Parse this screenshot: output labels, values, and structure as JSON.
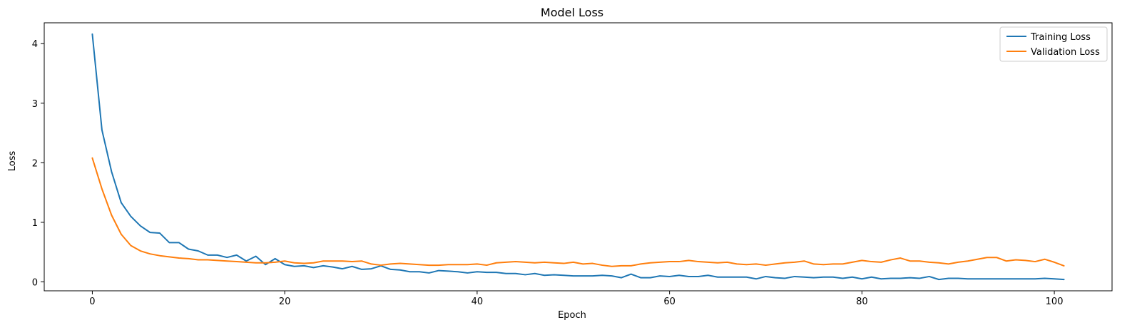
{
  "chart_data": {
    "type": "line",
    "title": "Model Loss",
    "xlabel": "Epoch",
    "ylabel": "Loss",
    "xlim": [
      -5,
      106
    ],
    "ylim": [
      -0.15,
      4.35
    ],
    "xticks": [
      0,
      20,
      40,
      60,
      80,
      100
    ],
    "yticks": [
      0,
      1,
      2,
      3,
      4
    ],
    "grid": false,
    "legend_position": "top-right",
    "series": [
      {
        "name": "Training Loss",
        "color": "#1f77b4",
        "values": [
          4.16,
          2.55,
          1.85,
          1.33,
          1.1,
          0.94,
          0.83,
          0.82,
          0.66,
          0.66,
          0.55,
          0.52,
          0.45,
          0.45,
          0.41,
          0.45,
          0.35,
          0.43,
          0.29,
          0.39,
          0.29,
          0.26,
          0.27,
          0.24,
          0.27,
          0.25,
          0.22,
          0.26,
          0.21,
          0.22,
          0.27,
          0.21,
          0.2,
          0.17,
          0.17,
          0.15,
          0.19,
          0.18,
          0.17,
          0.15,
          0.17,
          0.16,
          0.16,
          0.14,
          0.14,
          0.12,
          0.14,
          0.11,
          0.12,
          0.11,
          0.1,
          0.1,
          0.1,
          0.11,
          0.1,
          0.07,
          0.13,
          0.07,
          0.07,
          0.1,
          0.09,
          0.11,
          0.09,
          0.09,
          0.11,
          0.08,
          0.08,
          0.08,
          0.08,
          0.05,
          0.09,
          0.07,
          0.06,
          0.09,
          0.08,
          0.07,
          0.08,
          0.08,
          0.06,
          0.08,
          0.05,
          0.08,
          0.05,
          0.06,
          0.06,
          0.07,
          0.06,
          0.09,
          0.04,
          0.06,
          0.06,
          0.05,
          0.05,
          0.05,
          0.05,
          0.05,
          0.05,
          0.05,
          0.05,
          0.06,
          0.05,
          0.04
        ]
      },
      {
        "name": "Validation Loss",
        "color": "#ff7f0e",
        "values": [
          2.08,
          1.56,
          1.12,
          0.8,
          0.61,
          0.52,
          0.47,
          0.44,
          0.42,
          0.4,
          0.39,
          0.37,
          0.37,
          0.36,
          0.35,
          0.34,
          0.33,
          0.32,
          0.32,
          0.33,
          0.35,
          0.32,
          0.31,
          0.32,
          0.35,
          0.35,
          0.35,
          0.34,
          0.35,
          0.3,
          0.28,
          0.3,
          0.31,
          0.3,
          0.29,
          0.28,
          0.28,
          0.29,
          0.29,
          0.29,
          0.3,
          0.28,
          0.32,
          0.33,
          0.34,
          0.33,
          0.32,
          0.33,
          0.32,
          0.31,
          0.33,
          0.3,
          0.31,
          0.28,
          0.26,
          0.27,
          0.27,
          0.3,
          0.32,
          0.33,
          0.34,
          0.34,
          0.36,
          0.34,
          0.33,
          0.32,
          0.33,
          0.3,
          0.29,
          0.3,
          0.28,
          0.3,
          0.32,
          0.33,
          0.35,
          0.3,
          0.29,
          0.3,
          0.3,
          0.33,
          0.36,
          0.34,
          0.33,
          0.37,
          0.4,
          0.35,
          0.35,
          0.33,
          0.32,
          0.3,
          0.33,
          0.35,
          0.38,
          0.41,
          0.41,
          0.35,
          0.37,
          0.36,
          0.34,
          0.38,
          0.33,
          0.27
        ]
      }
    ]
  }
}
